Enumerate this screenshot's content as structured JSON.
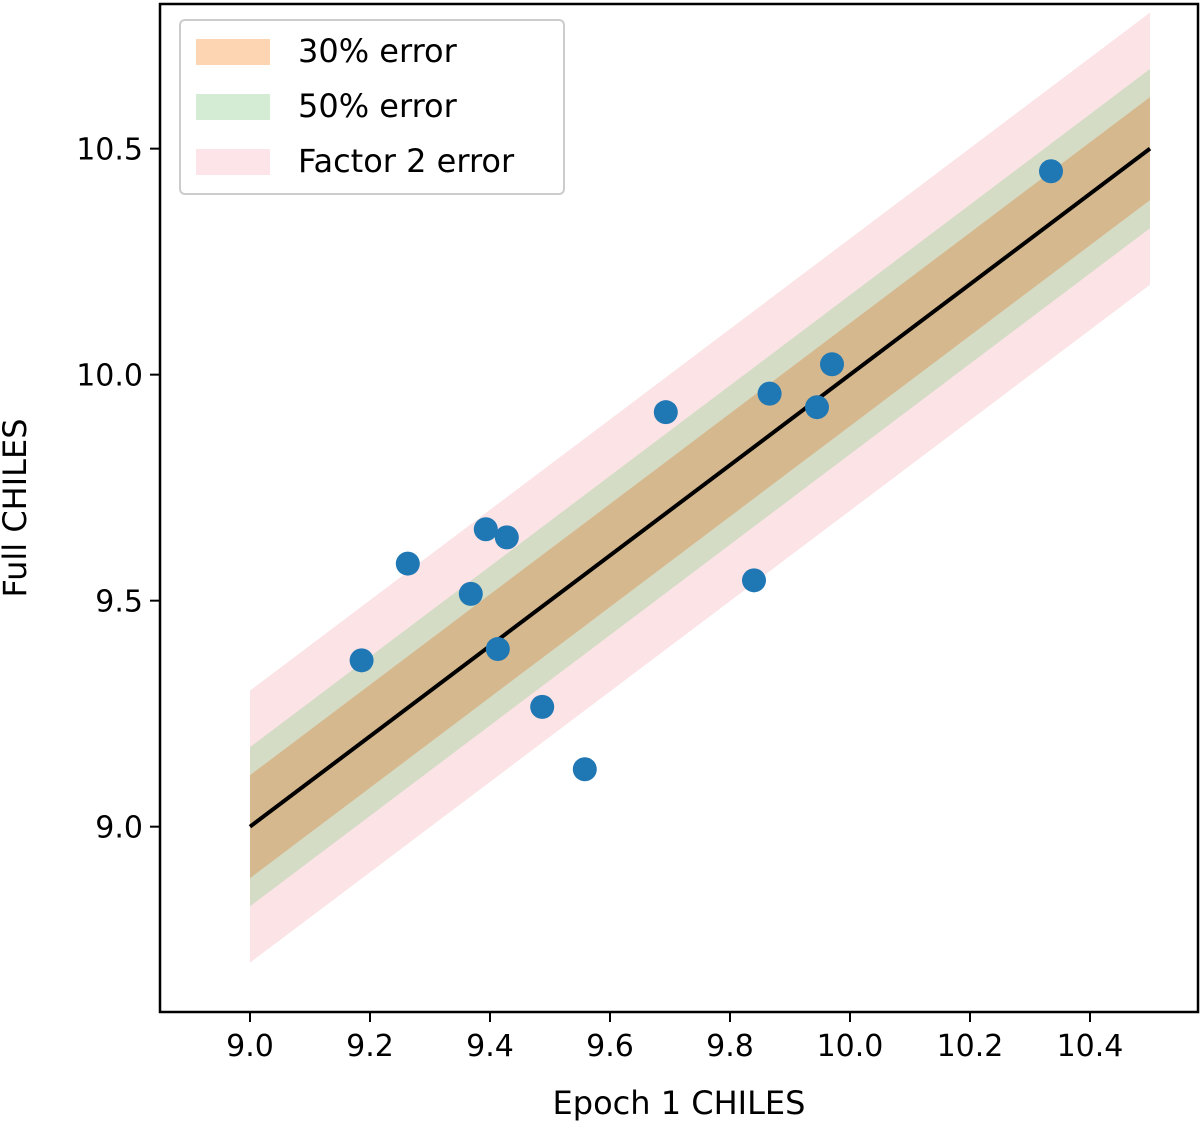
{
  "chart_data": {
    "type": "scatter",
    "title": "",
    "xlabel": "Epoch 1 CHILES",
    "ylabel": "Full CHILES",
    "xlim": [
      8.85,
      10.58
    ],
    "ylim": [
      8.59,
      10.82
    ],
    "x_ticks": [
      9.0,
      9.2,
      9.4,
      9.6,
      9.8,
      10.0,
      10.2,
      10.4
    ],
    "x_tick_labels": [
      "9.0",
      "9.2",
      "9.4",
      "9.6",
      "9.8",
      "10.0",
      "10.2",
      "10.4"
    ],
    "y_ticks": [
      9.0,
      9.5,
      10.0,
      10.5
    ],
    "y_tick_labels": [
      "9.0",
      "9.5",
      "10.0",
      "10.5"
    ],
    "grid": false,
    "legend_position": "top-left",
    "one_to_one_line": {
      "x": [
        9.0,
        10.5
      ],
      "y": [
        9.0,
        10.5
      ],
      "color": "#000000"
    },
    "bands": [
      {
        "name": "Factor 2 error",
        "offset": 0.30103,
        "color": "#fbe3e6"
      },
      {
        "name": "50% error",
        "offset": 0.17609,
        "color": "#d5dcc6"
      },
      {
        "name": "30% error",
        "offset": 0.11394,
        "color": "#d6b88e"
      }
    ],
    "legend": [
      {
        "label": "30% error",
        "swatch": "#fdd5b2"
      },
      {
        "label": "50% error",
        "swatch": "#d3ecd3"
      },
      {
        "label": "Factor 2 error",
        "swatch": "#fce4e8"
      }
    ],
    "series": [
      {
        "color": "#1f77b4",
        "points": [
          {
            "x": 9.186,
            "y": 9.368
          },
          {
            "x": 9.263,
            "y": 9.582
          },
          {
            "x": 9.368,
            "y": 9.515
          },
          {
            "x": 9.393,
            "y": 9.658
          },
          {
            "x": 9.413,
            "y": 9.393
          },
          {
            "x": 9.428,
            "y": 9.64
          },
          {
            "x": 9.487,
            "y": 9.265
          },
          {
            "x": 9.558,
            "y": 9.127
          },
          {
            "x": 9.693,
            "y": 9.917
          },
          {
            "x": 9.84,
            "y": 9.545
          },
          {
            "x": 9.866,
            "y": 9.958
          },
          {
            "x": 9.945,
            "y": 9.928
          },
          {
            "x": 9.97,
            "y": 10.023
          },
          {
            "x": 10.335,
            "y": 10.45
          }
        ]
      }
    ]
  }
}
